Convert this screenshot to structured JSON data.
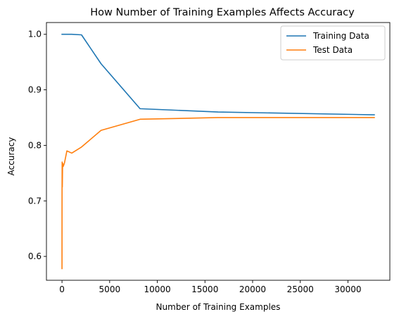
{
  "chart_data": {
    "type": "line",
    "title": "How Number of Training Examples Affects Accuracy",
    "xlabel": "Number of Training Examples",
    "ylabel": "Accuracy",
    "xlim": [
      -1632,
      34400
    ],
    "ylim": [
      0.557,
      1.0212
    ],
    "xticks": [
      0,
      5000,
      10000,
      15000,
      20000,
      25000,
      30000
    ],
    "yticks": [
      0.6,
      0.7,
      0.8,
      0.9,
      1.0
    ],
    "xtick_labels": [
      "0",
      "5000",
      "10000",
      "15000",
      "20000",
      "25000",
      "30000"
    ],
    "ytick_labels": [
      "0.6",
      "0.7",
      "0.8",
      "0.9",
      "1.0"
    ],
    "grid": false,
    "legend_position": "top-right",
    "series": [
      {
        "name": "Training Data",
        "color": "#1f77b4",
        "x": [
          1,
          2,
          4,
          8,
          16,
          32,
          64,
          128,
          256,
          512,
          1024,
          2048,
          4096,
          8192,
          16384,
          32768
        ],
        "y": [
          1.0,
          1.0,
          1.0,
          1.0,
          1.0,
          1.0,
          1.0,
          1.0,
          1.0,
          1.0,
          1.0,
          0.999,
          0.947,
          0.866,
          0.86,
          0.855
        ]
      },
      {
        "name": "Test Data",
        "color": "#ff7f0e",
        "x": [
          1,
          2,
          4,
          8,
          16,
          32,
          64,
          128,
          256,
          512,
          1024,
          2048,
          4096,
          8192,
          16384,
          32768
        ],
        "y": [
          0.578,
          0.62,
          0.68,
          0.725,
          0.77,
          0.725,
          0.768,
          0.762,
          0.768,
          0.79,
          0.786,
          0.797,
          0.827,
          0.847,
          0.85,
          0.85
        ]
      }
    ]
  }
}
